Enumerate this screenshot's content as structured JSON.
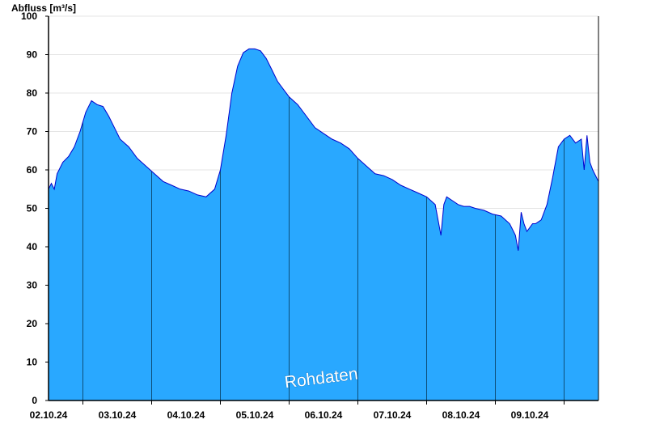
{
  "chart_data": {
    "type": "area",
    "title": "",
    "ylabel": "Abfluss [m³/s]",
    "xlabel": "",
    "ylim": [
      0,
      100
    ],
    "yticks": [
      0,
      10,
      20,
      30,
      40,
      50,
      60,
      70,
      80,
      90,
      100
    ],
    "x_tick_labels": [
      "02.10.24",
      "03.10.24",
      "04.10.24",
      "05.10.24",
      "06.10.24",
      "07.10.24",
      "08.10.24",
      "09.10.24"
    ],
    "x_start": "2024-10-01 12:00",
    "x_end": "2024-10-09 12:00",
    "grid": true,
    "watermark": "Rohdaten",
    "colors": {
      "fill": "#29a8ff",
      "line": "#0000cc"
    },
    "series": [
      {
        "x": [
          "2024-10-01 12:00",
          "2024-10-01 13:00",
          "2024-10-01 14:00",
          "2024-10-01 15:00",
          "2024-10-01 17:00",
          "2024-10-01 19:00",
          "2024-10-01 21:00",
          "2024-10-01 23:00",
          "2024-10-02 01:00",
          "2024-10-02 03:00",
          "2024-10-02 05:00",
          "2024-10-02 07:00",
          "2024-10-02 09:00",
          "2024-10-02 11:00",
          "2024-10-02 13:00",
          "2024-10-02 16:00",
          "2024-10-02 19:00",
          "2024-10-02 22:00",
          "2024-10-03 01:00",
          "2024-10-03 04:00",
          "2024-10-03 07:00",
          "2024-10-03 10:00",
          "2024-10-03 13:00",
          "2024-10-03 16:00",
          "2024-10-03 19:00",
          "2024-10-03 22:00",
          "2024-10-04 00:00",
          "2024-10-04 02:00",
          "2024-10-04 04:00",
          "2024-10-04 06:00",
          "2024-10-04 08:00",
          "2024-10-04 10:00",
          "2024-10-04 12:00",
          "2024-10-04 14:00",
          "2024-10-04 16:00",
          "2024-10-04 18:00",
          "2024-10-04 20:00",
          "2024-10-04 22:00",
          "2024-10-05 00:00",
          "2024-10-05 03:00",
          "2024-10-05 06:00",
          "2024-10-05 09:00",
          "2024-10-05 12:00",
          "2024-10-05 15:00",
          "2024-10-05 18:00",
          "2024-10-05 21:00",
          "2024-10-06 00:00",
          "2024-10-06 03:00",
          "2024-10-06 06:00",
          "2024-10-06 09:00",
          "2024-10-06 12:00",
          "2024-10-06 15:00",
          "2024-10-06 18:00",
          "2024-10-06 21:00",
          "2024-10-07 00:00",
          "2024-10-07 03:00",
          "2024-10-07 05:00",
          "2024-10-07 06:00",
          "2024-10-07 07:00",
          "2024-10-07 09:00",
          "2024-10-07 11:00",
          "2024-10-07 13:00",
          "2024-10-07 15:00",
          "2024-10-07 17:00",
          "2024-10-07 20:00",
          "2024-10-07 23:00",
          "2024-10-08 02:00",
          "2024-10-08 05:00",
          "2024-10-08 07:00",
          "2024-10-08 08:00",
          "2024-10-08 09:00",
          "2024-10-08 10:00",
          "2024-10-08 11:00",
          "2024-10-08 12:00",
          "2024-10-08 13:00",
          "2024-10-08 14:00",
          "2024-10-08 16:00",
          "2024-10-08 18:00",
          "2024-10-08 20:00",
          "2024-10-08 22:00",
          "2024-10-09 00:00",
          "2024-10-09 02:00",
          "2024-10-09 04:00",
          "2024-10-09 06:00",
          "2024-10-09 07:00",
          "2024-10-09 08:00",
          "2024-10-09 09:00",
          "2024-10-09 10:00",
          "2024-10-09 12:00"
        ],
        "values": [
          55,
          56.5,
          55,
          59,
          62,
          63.5,
          66,
          70,
          75,
          78,
          77,
          76.5,
          74,
          71,
          68,
          66,
          63,
          61,
          59,
          57,
          56,
          55,
          54.5,
          53.5,
          53,
          55,
          60,
          69,
          80,
          87,
          90.5,
          91.5,
          91.5,
          91,
          89,
          86,
          83,
          81,
          79,
          77,
          74,
          71,
          69.5,
          68,
          67,
          65.5,
          63,
          61,
          59,
          58.5,
          57.5,
          56,
          55,
          54,
          53,
          51,
          43,
          51,
          53,
          52,
          51,
          50.5,
          50.5,
          50,
          49.5,
          48.5,
          48,
          46,
          43,
          39,
          49,
          46,
          44,
          45,
          46,
          46,
          47,
          51,
          58,
          66,
          68,
          69,
          67,
          68,
          60,
          69,
          62,
          60,
          57
        ]
      }
    ]
  }
}
